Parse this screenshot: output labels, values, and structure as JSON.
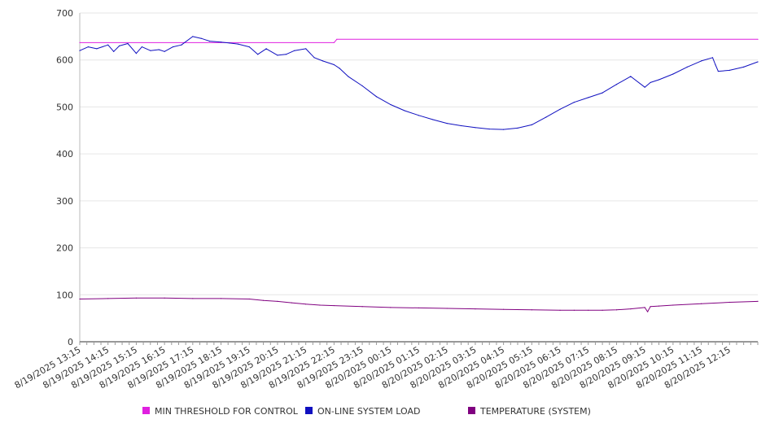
{
  "chart_data": {
    "type": "line",
    "title": "",
    "xlabel": "",
    "ylabel": "",
    "ylim": [
      0,
      700
    ],
    "yticks": [
      0,
      100,
      200,
      300,
      400,
      500,
      600,
      700
    ],
    "grid": true,
    "legend_position": "bottom",
    "x_tick_labels": [
      "8/19/2025 13:15",
      "8/19/2025 14:15",
      "8/19/2025 15:15",
      "8/19/2025 16:15",
      "8/19/2025 17:15",
      "8/19/2025 18:15",
      "8/19/2025 19:15",
      "8/19/2025 20:15",
      "8/19/2025 21:15",
      "8/19/2025 22:15",
      "8/19/2025 23:15",
      "8/20/2025 00:15",
      "8/20/2025 01:15",
      "8/20/2025 02:15",
      "8/20/2025 03:15",
      "8/20/2025 04:15",
      "8/20/2025 05:15",
      "8/20/2025 06:15",
      "8/20/2025 07:15",
      "8/20/2025 08:15",
      "8/20/2025 09:15",
      "8/20/2025 10:15",
      "8/20/2025 11:15",
      "8/20/2025 12:15"
    ],
    "x_range_hours_from_first_tick": [
      0,
      24
    ],
    "series": [
      {
        "name": "MIN THRESHOLD FOR CONTROL",
        "color": "#e020e0",
        "x_hours": [
          0,
          9.0,
          9.1,
          24
        ],
        "values": [
          637,
          637,
          644,
          644
        ]
      },
      {
        "name": "ON-LINE SYSTEM LOAD",
        "color": "#1010c0",
        "x_hours": [
          0,
          0.3,
          0.6,
          1.0,
          1.2,
          1.4,
          1.7,
          2.0,
          2.2,
          2.5,
          2.8,
          3.0,
          3.3,
          3.6,
          4.0,
          4.3,
          4.6,
          5.0,
          5.3,
          5.6,
          6.0,
          6.3,
          6.6,
          7.0,
          7.3,
          7.6,
          8.0,
          8.3,
          8.6,
          9.0,
          9.2,
          9.5,
          10.0,
          10.5,
          11.0,
          11.5,
          12.0,
          12.5,
          13.0,
          13.5,
          14.0,
          14.5,
          15.0,
          15.5,
          16.0,
          16.5,
          17.0,
          17.5,
          18.0,
          18.5,
          19.0,
          19.5,
          20.0,
          20.2,
          20.5,
          21.0,
          21.5,
          22.0,
          22.4,
          22.5,
          22.6,
          23.0,
          23.5,
          24.0
        ],
        "values": [
          620,
          628,
          624,
          632,
          618,
          630,
          635,
          614,
          628,
          620,
          622,
          618,
          628,
          632,
          650,
          646,
          640,
          638,
          636,
          634,
          628,
          612,
          624,
          610,
          612,
          620,
          624,
          605,
          598,
          590,
          582,
          565,
          545,
          522,
          505,
          492,
          482,
          473,
          465,
          460,
          456,
          453,
          452,
          455,
          462,
          478,
          495,
          510,
          520,
          530,
          548,
          565,
          542,
          552,
          558,
          570,
          585,
          598,
          605,
          590,
          576,
          578,
          585,
          596
        ]
      },
      {
        "name": "TEMPERATURE (SYSTEM)",
        "color": "#800080",
        "x_hours": [
          0,
          1.0,
          2.0,
          3.0,
          4.0,
          5.0,
          6.0,
          6.5,
          7.0,
          7.5,
          8.0,
          8.5,
          9.0,
          10.0,
          11.0,
          12.0,
          13.0,
          14.0,
          15.0,
          16.0,
          17.0,
          17.5,
          18.0,
          18.5,
          19.0,
          19.5,
          20.0,
          20.1,
          20.2,
          20.5,
          21.0,
          22.0,
          23.0,
          24.0
        ],
        "values": [
          91,
          92,
          93,
          93,
          92,
          92,
          91,
          88,
          86,
          83,
          80,
          78,
          77,
          75,
          73,
          72,
          71,
          70,
          69,
          68,
          67,
          67,
          67,
          67,
          68,
          70,
          73,
          64,
          75,
          76,
          78,
          81,
          84,
          86
        ]
      }
    ]
  }
}
